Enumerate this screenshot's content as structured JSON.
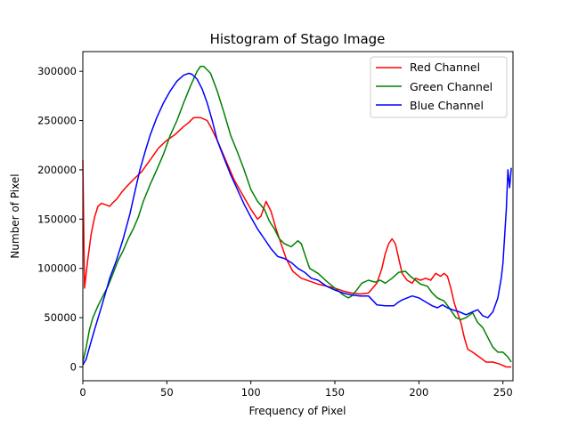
{
  "chart_data": {
    "type": "line",
    "title": "Histogram of Stago Image",
    "xlabel": "Frequency of Pixel",
    "ylabel": "Number of Pixel",
    "xlim": [
      0,
      256
    ],
    "ylim": [
      -14000,
      320000
    ],
    "xticks": [
      0,
      50,
      100,
      150,
      200,
      250
    ],
    "yticks": [
      0,
      50000,
      100000,
      150000,
      200000,
      250000,
      300000
    ],
    "grid": false,
    "legend_position": "top-right",
    "series": [
      {
        "name": "Red Channel",
        "color": "#ff0000",
        "x": [
          0,
          1,
          3,
          5,
          7,
          9,
          11,
          13,
          16,
          18,
          20,
          23,
          26,
          30,
          35,
          40,
          45,
          50,
          55,
          60,
          63,
          66,
          70,
          74,
          76,
          80,
          85,
          90,
          95,
          100,
          104,
          106,
          109,
          112,
          115,
          118,
          121,
          125,
          130,
          135,
          140,
          145,
          150,
          155,
          160,
          165,
          170,
          175,
          178,
          180,
          182,
          184,
          186,
          188,
          190,
          193,
          196,
          198,
          201,
          204,
          207,
          210,
          213,
          215,
          217,
          219,
          221,
          223,
          225,
          227,
          229,
          232,
          236,
          240,
          244,
          248,
          252,
          255
        ],
        "y": [
          210000,
          80000,
          110000,
          135000,
          152000,
          163000,
          166000,
          165000,
          163000,
          167000,
          170000,
          177000,
          183000,
          190000,
          198000,
          210000,
          222000,
          230000,
          236000,
          244000,
          248000,
          253000,
          253000,
          250000,
          244000,
          230000,
          210000,
          190000,
          175000,
          160000,
          150000,
          153000,
          168000,
          158000,
          140000,
          125000,
          110000,
          97000,
          90000,
          87000,
          84000,
          82000,
          80000,
          77000,
          75000,
          74000,
          75000,
          85000,
          100000,
          115000,
          125000,
          130000,
          125000,
          110000,
          95000,
          88000,
          85000,
          90000,
          88000,
          90000,
          88000,
          95000,
          92000,
          95000,
          92000,
          80000,
          65000,
          55000,
          45000,
          30000,
          18000,
          15000,
          10000,
          5000,
          5000,
          3000,
          0,
          0
        ]
      },
      {
        "name": "Green Channel",
        "color": "#008000",
        "x": [
          0,
          2,
          4,
          6,
          9,
          12,
          15,
          18,
          21,
          24,
          27,
          30,
          33,
          36,
          40,
          44,
          48,
          52,
          56,
          60,
          64,
          68,
          70,
          72,
          76,
          80,
          84,
          88,
          92,
          96,
          100,
          104,
          108,
          111,
          114,
          117,
          120,
          124,
          128,
          130,
          132,
          135,
          140,
          145,
          150,
          155,
          158,
          160,
          163,
          166,
          170,
          174,
          177,
          180,
          184,
          188,
          192,
          195,
          198,
          201,
          205,
          208,
          211,
          215,
          218,
          220,
          222,
          225,
          228,
          232,
          235,
          238,
          241,
          244,
          247,
          250,
          253,
          255
        ],
        "y": [
          5000,
          20000,
          38000,
          50000,
          62000,
          72000,
          82000,
          95000,
          108000,
          118000,
          130000,
          140000,
          152000,
          168000,
          185000,
          200000,
          216000,
          235000,
          250000,
          268000,
          285000,
          300000,
          305000,
          305000,
          298000,
          280000,
          258000,
          235000,
          218000,
          200000,
          180000,
          168000,
          160000,
          148000,
          140000,
          130000,
          125000,
          122000,
          128000,
          125000,
          115000,
          100000,
          95000,
          87000,
          80000,
          73000,
          70000,
          72000,
          78000,
          85000,
          88000,
          86000,
          88000,
          85000,
          90000,
          96000,
          97000,
          92000,
          88000,
          84000,
          82000,
          75000,
          70000,
          67000,
          60000,
          55000,
          50000,
          48000,
          50000,
          55000,
          45000,
          40000,
          30000,
          20000,
          15000,
          15000,
          10000,
          5000
        ]
      },
      {
        "name": "Blue Channel",
        "color": "#0000ff",
        "x": [
          0,
          2,
          4,
          7,
          10,
          13,
          16,
          20,
          24,
          28,
          31,
          34,
          37,
          40,
          44,
          48,
          52,
          56,
          60,
          63,
          65,
          68,
          71,
          74,
          77,
          80,
          84,
          88,
          92,
          96,
          100,
          104,
          108,
          112,
          116,
          120,
          124,
          128,
          132,
          136,
          140,
          145,
          150,
          155,
          160,
          165,
          170,
          175,
          180,
          185,
          188,
          190,
          193,
          196,
          200,
          204,
          208,
          211,
          214,
          217,
          220,
          224,
          228,
          232,
          235,
          238,
          241,
          244,
          247,
          249,
          250,
          252,
          253,
          254,
          255
        ],
        "y": [
          2000,
          8000,
          20000,
          38000,
          55000,
          72000,
          90000,
          108000,
          130000,
          155000,
          178000,
          200000,
          218000,
          235000,
          253000,
          268000,
          280000,
          290000,
          296000,
          298000,
          297000,
          292000,
          282000,
          268000,
          250000,
          230000,
          212000,
          195000,
          180000,
          165000,
          152000,
          140000,
          130000,
          120000,
          112000,
          110000,
          106000,
          100000,
          96000,
          90000,
          88000,
          82000,
          78000,
          75000,
          73000,
          72000,
          72000,
          63000,
          62000,
          62000,
          66000,
          68000,
          70000,
          72000,
          70000,
          66000,
          62000,
          60000,
          63000,
          60000,
          58000,
          56000,
          53000,
          56000,
          58000,
          52000,
          50000,
          56000,
          70000,
          90000,
          105000,
          160000,
          200000,
          182000,
          202000
        ]
      }
    ]
  }
}
